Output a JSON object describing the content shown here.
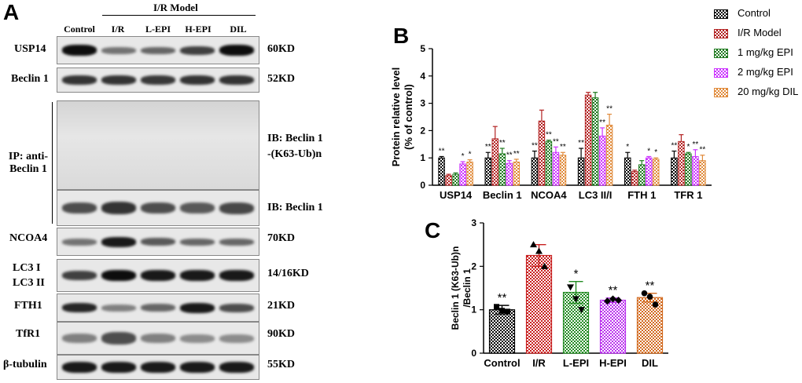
{
  "figure": {
    "panel_a": {
      "letter": "A",
      "group_header": "I/R Model",
      "columns": [
        "Control",
        "I/R",
        "L-EPI",
        "H-EPI",
        "DIL"
      ],
      "rows": [
        {
          "label": "USP14",
          "mw": "60KD"
        },
        {
          "label": "Beclin 1",
          "mw": "52KD"
        },
        {
          "label": "IP: anti-\nBeclin 1",
          "mw": "IB: Beclin 1\n-(K63-Ub)n"
        },
        {
          "label": "",
          "mw": "IB: Beclin 1"
        },
        {
          "label": "NCOA4",
          "mw": "70KD"
        },
        {
          "label": "LC3 I\nLC3 II",
          "mw": "14/16KD"
        },
        {
          "label": "FTH1",
          "mw": "21KD"
        },
        {
          "label": "TfR1",
          "mw": "90KD"
        },
        {
          "label": "β-tubulin",
          "mw": "55KD"
        }
      ]
    },
    "panel_b_letter": "B",
    "panel_c_letter": "C"
  },
  "chart_data": [
    {
      "type": "bar",
      "ylabel": "Protein relative level\n(% of control)",
      "ylim": [
        0,
        5
      ],
      "yticks": [
        0,
        1,
        2,
        3,
        4,
        5
      ],
      "categories": [
        "USP14",
        "Beclin 1",
        "NCOA4",
        "LC3 II/I",
        "FTH 1",
        "TFR 1"
      ],
      "series": [
        {
          "name": "Control",
          "color": "#000000",
          "values": [
            1.0,
            1.0,
            1.0,
            1.0,
            1.0,
            1.0
          ],
          "errors": [
            0.05,
            0.2,
            0.25,
            0.35,
            0.2,
            0.25
          ],
          "sig": [
            "**",
            "**",
            "**",
            "**",
            "*",
            "**"
          ]
        },
        {
          "name": "I/R Model",
          "color": "#b22222",
          "values": [
            0.35,
            1.7,
            2.35,
            3.3,
            0.5,
            1.6
          ],
          "errors": [
            0.05,
            0.45,
            0.4,
            0.1,
            0.05,
            0.25
          ],
          "sig": [
            "",
            "",
            "",
            "",
            "",
            ""
          ]
        },
        {
          "name": "1 mg/kg EPI",
          "color": "#1f7a1f",
          "values": [
            0.4,
            1.15,
            1.6,
            3.2,
            0.75,
            1.15
          ],
          "errors": [
            0.05,
            0.2,
            0.05,
            0.2,
            0.15,
            0.05
          ],
          "sig": [
            "",
            "**",
            "**",
            "",
            "",
            "*"
          ]
        },
        {
          "name": "2 mg/kg EPI",
          "color": "#cc33ff",
          "values": [
            0.78,
            0.8,
            1.2,
            1.8,
            1.0,
            1.05
          ],
          "errors": [
            0.08,
            0.1,
            0.2,
            0.3,
            0.05,
            0.25
          ],
          "sig": [
            "*",
            "**",
            "**",
            "**",
            "*",
            "**"
          ]
        },
        {
          "name": "20 mg/kg DIL",
          "color": "#e08a3a",
          "values": [
            0.85,
            0.85,
            1.1,
            2.2,
            0.95,
            0.9
          ],
          "errors": [
            0.08,
            0.1,
            0.1,
            0.4,
            0.05,
            0.2
          ],
          "sig": [
            "*",
            "**",
            "**",
            "**",
            "*",
            "**"
          ]
        }
      ],
      "legend": "top-right"
    },
    {
      "type": "bar",
      "ylabel": "Beclin 1 (K63-Ub)n\n/Beclin 1",
      "ylim": [
        0,
        3
      ],
      "yticks": [
        0,
        1,
        2,
        3
      ],
      "categories": [
        "Control",
        "I/R",
        "L-EPI",
        "H-EPI",
        "DIL"
      ],
      "colors": [
        "#000000",
        "#c81e1e",
        "#228b22",
        "#bb33ee",
        "#d2691e"
      ],
      "values": [
        1.0,
        2.25,
        1.4,
        1.22,
        1.28
      ],
      "errors": [
        0.1,
        0.25,
        0.25,
        0.05,
        0.1
      ],
      "sig": [
        "**",
        "",
        "*",
        "**",
        "**"
      ],
      "points": [
        [
          1.07,
          0.98,
          0.96
        ],
        [
          2.5,
          2.35,
          2.0
        ],
        [
          1.52,
          1.25,
          1.0
        ],
        [
          1.2,
          1.25,
          1.22
        ],
        [
          1.38,
          1.3,
          1.12
        ]
      ],
      "point_markers": [
        "square",
        "triangle",
        "triangle-down",
        "diamond",
        "circle"
      ]
    }
  ]
}
